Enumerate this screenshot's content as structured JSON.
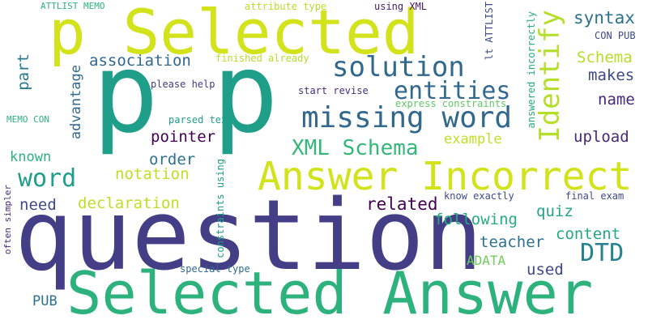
{
  "words": [
    {
      "text": "p Selected",
      "color": "#d2e21b"
    },
    {
      "text": "p",
      "color": "#1f9e89"
    },
    {
      "text": "p",
      "color": "#1f9e89"
    },
    {
      "text": "question",
      "color": "#433e85"
    },
    {
      "text": "Selected Answer",
      "color": "#2db27d"
    },
    {
      "text": "Answer Incorrect",
      "color": "#d2e21b"
    },
    {
      "text": "missing word",
      "color": "#31688e"
    },
    {
      "text": "solution",
      "color": "#31688e"
    },
    {
      "text": "Identify",
      "color": "#b5de2b"
    },
    {
      "text": "entities",
      "color": "#31688e"
    },
    {
      "text": "XML Schema",
      "color": "#35b779"
    },
    {
      "text": "word",
      "color": "#1f9e89"
    },
    {
      "text": "association",
      "color": "#31688e"
    },
    {
      "text": "syntax",
      "color": "#2c728e"
    },
    {
      "text": "Schema",
      "color": "#b5de2b"
    },
    {
      "text": "makes",
      "color": "#3e4989"
    },
    {
      "text": "name",
      "color": "#482878"
    },
    {
      "text": "upload",
      "color": "#482878"
    },
    {
      "text": "example",
      "color": "#c2df23"
    },
    {
      "text": "pointer",
      "color": "#440154"
    },
    {
      "text": "order",
      "color": "#2c728e"
    },
    {
      "text": "notation",
      "color": "#bddf26"
    },
    {
      "text": "declaration",
      "color": "#bddf26"
    },
    {
      "text": "related",
      "color": "#440154"
    },
    {
      "text": "following",
      "color": "#25ab82"
    },
    {
      "text": "quiz",
      "color": "#20a486"
    },
    {
      "text": "DTD",
      "color": "#26828e"
    },
    {
      "text": "content",
      "color": "#22a884"
    },
    {
      "text": "teacher",
      "color": "#2c728e"
    },
    {
      "text": "ADATA",
      "color": "#6ece58"
    },
    {
      "text": "used",
      "color": "#3e4989"
    },
    {
      "text": "known",
      "color": "#2db27d"
    },
    {
      "text": "need",
      "color": "#3e4989"
    },
    {
      "text": "PUB",
      "color": "#2c728e"
    },
    {
      "text": "part",
      "color": "#2a788e"
    },
    {
      "text": "advantage",
      "color": "#31688e"
    },
    {
      "text": "ATTLIST MEMO",
      "color": "#2db27d"
    },
    {
      "text": "attribute type",
      "color": "#b5de2b"
    },
    {
      "text": "using XML",
      "color": "#481a6c"
    },
    {
      "text": "lt ATTLIST",
      "color": "#3e4989"
    },
    {
      "text": "CON PUB",
      "color": "#3e4989"
    },
    {
      "text": "finished already",
      "color": "#b5de2b"
    },
    {
      "text": "please help",
      "color": "#443a83"
    },
    {
      "text": "start revise",
      "color": "#472d7b"
    },
    {
      "text": "express constraints",
      "color": "#5ec962"
    },
    {
      "text": "answered incorrectly",
      "color": "#25ab82"
    },
    {
      "text": "MEMO CON",
      "color": "#2db27d"
    },
    {
      "text": "parsed text",
      "color": "#1f9e89"
    },
    {
      "text": "constraints using",
      "color": "#1f9e89"
    },
    {
      "text": "often simpler",
      "color": "#482878"
    },
    {
      "text": "know exactly",
      "color": "#3e4989"
    },
    {
      "text": "final exam",
      "color": "#3e4989"
    },
    {
      "text": "special type",
      "color": "#31688e"
    }
  ]
}
